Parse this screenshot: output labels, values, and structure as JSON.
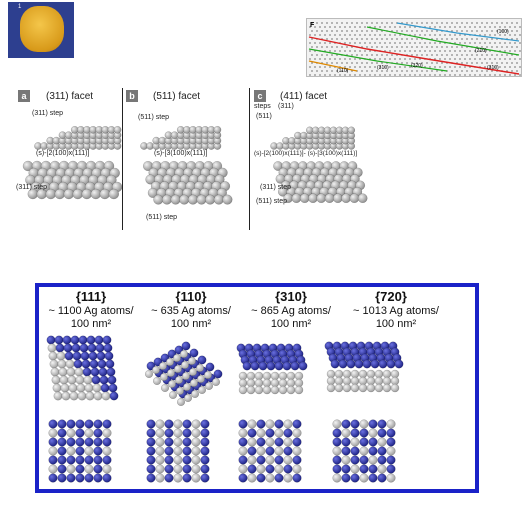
{
  "thumbnail": {
    "label": "1"
  },
  "panel_f": {
    "letter": "F",
    "labels": [
      "(100)",
      "(210)",
      "(310)",
      "(320)",
      "(110)",
      "(310)"
    ]
  },
  "middle_figure": {
    "panels": [
      {
        "letter": "a",
        "title": "(311) facet",
        "step_top": "(311) step",
        "formula": "(s)-[2(100)x(111)]",
        "step_bottom": "(311) step"
      },
      {
        "letter": "b",
        "title": "(511) facet",
        "step_top": "(511) step",
        "formula": "(s)-[3(100)x(111)]",
        "step_bottom": "(511) step"
      },
      {
        "letter": "c",
        "title": "(411) facet",
        "steps_label": "steps",
        "step_a": "(311)",
        "step_b": "(511)",
        "formula": "(s)-[2(100)x(111)]- (s)-[3(100)x(111)]",
        "step_bottom_1": "(311) step",
        "step_bottom_2": "(511) step"
      }
    ]
  },
  "bottom_figure": {
    "columns": [
      {
        "title": "{111}",
        "line1": "~ 1100 Ag atoms/",
        "line2": "100 nm²"
      },
      {
        "title": "{110}",
        "line1": "~ 635 Ag atoms/",
        "line2": "100 nm²"
      },
      {
        "title": "{310}",
        "line1": "~ 865 Ag atoms/",
        "line2": "100 nm²"
      },
      {
        "title": "{720}",
        "line1": "~ 1013  Ag atoms/",
        "line2": "100 nm²"
      }
    ],
    "colors": {
      "frame": "#1a22c8",
      "atom_blue": "#2a2fa8",
      "atom_gray": "#c8c8c8"
    }
  }
}
